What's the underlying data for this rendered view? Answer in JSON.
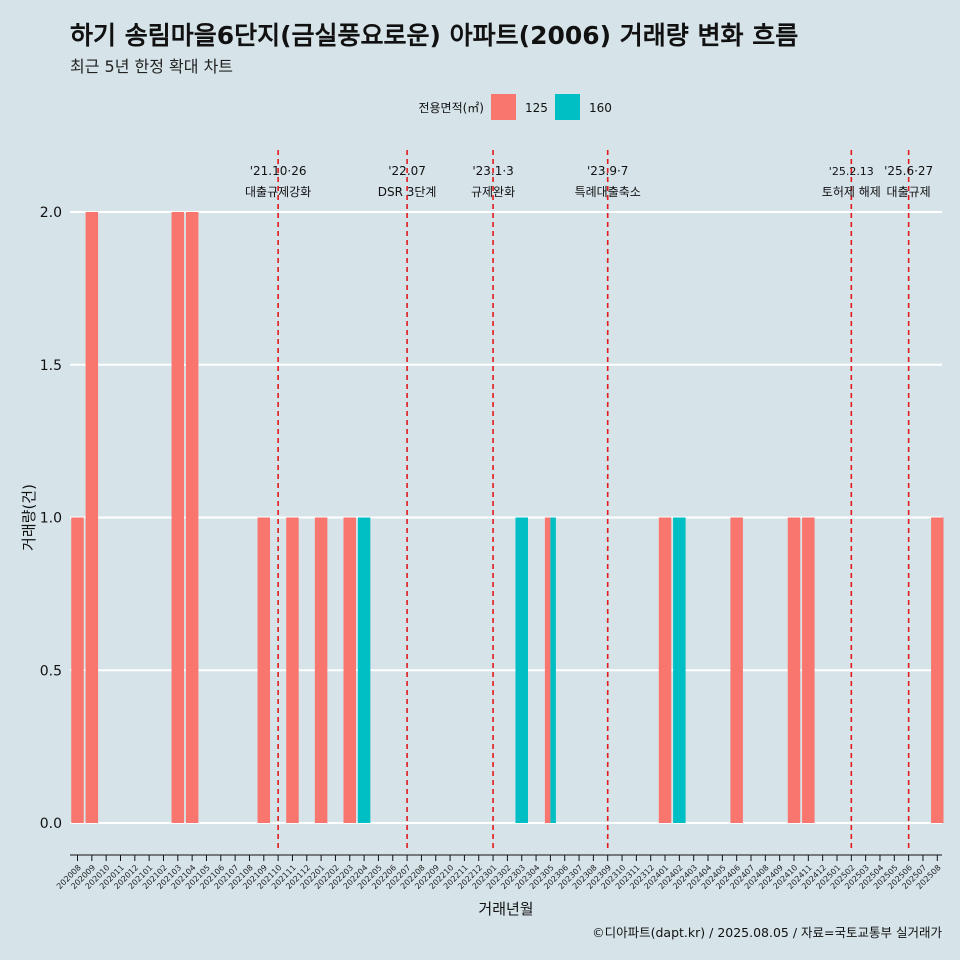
{
  "header": {
    "title": "하기 송림마을6단지(금실풍요로운) 아파트(2006) 거래량 변화 흐름",
    "subtitle": "최근 5년 한정 확대 차트"
  },
  "caption": "©디아파트(dapt.kr) / 2025.08.05 / 자료=국토교통부 실거래가",
  "colors": {
    "background": "#d6e4ea",
    "series_125": "#f8766d",
    "series_160": "#00bfc4",
    "event_line": "#e31a1c",
    "grid": "#ffffff"
  },
  "chart_data": {
    "type": "bar",
    "xlabel": "거래년월",
    "ylabel": "거래량(건)",
    "ylim": [
      0,
      2
    ],
    "y_ticks": [
      "0.0",
      "0.5",
      "1.0",
      "1.5",
      "2.0"
    ],
    "legend": {
      "title": "전용면적(㎡)",
      "position": "top"
    },
    "grid": true,
    "categories": [
      "202008",
      "202009",
      "202010",
      "202011",
      "202012",
      "202101",
      "202102",
      "202103",
      "202104",
      "202105",
      "202106",
      "202107",
      "202108",
      "202109",
      "202110",
      "202111",
      "202112",
      "202201",
      "202202",
      "202203",
      "202204",
      "202205",
      "202206",
      "202207",
      "202208",
      "202209",
      "202210",
      "202211",
      "202212",
      "202301",
      "202302",
      "202303",
      "202304",
      "202305",
      "202306",
      "202307",
      "202308",
      "202309",
      "202310",
      "202311",
      "202312",
      "202401",
      "202402",
      "202403",
      "202404",
      "202405",
      "202406",
      "202407",
      "202408",
      "202409",
      "202410",
      "202411",
      "202412",
      "202501",
      "202502",
      "202503",
      "202504",
      "202505",
      "202506",
      "202507",
      "202508"
    ],
    "series": [
      {
        "name": "125",
        "values": [
          1,
          2,
          0,
          0,
          0,
          0,
          0,
          2,
          2,
          0,
          0,
          0,
          0,
          1,
          0,
          1,
          0,
          1,
          0,
          1,
          0,
          0,
          0,
          0,
          0,
          0,
          0,
          0,
          0,
          0,
          0,
          0,
          0,
          1,
          0,
          0,
          0,
          0,
          0,
          0,
          0,
          1,
          0,
          0,
          0,
          0,
          1,
          0,
          0,
          0,
          1,
          1,
          0,
          0,
          0,
          0,
          0,
          0,
          0,
          0,
          1
        ]
      },
      {
        "name": "160",
        "values": [
          0,
          0,
          0,
          0,
          0,
          0,
          0,
          0,
          0,
          0,
          0,
          0,
          0,
          0,
          0,
          0,
          0,
          0,
          0,
          0,
          1,
          0,
          0,
          0,
          0,
          0,
          0,
          0,
          0,
          0,
          0,
          1,
          0,
          1,
          0,
          0,
          0,
          0,
          0,
          0,
          0,
          0,
          1,
          0,
          0,
          0,
          0,
          0,
          0,
          0,
          0,
          0,
          0,
          0,
          0,
          0,
          0,
          0,
          0,
          0,
          0
        ]
      }
    ],
    "events": [
      {
        "category": "202110",
        "date": "'21.10·26",
        "label": "대출규제강화"
      },
      {
        "category": "202207",
        "date": "'22.07",
        "label": "DSR 3단계"
      },
      {
        "category": "202301",
        "date": "'23.1·3",
        "label": "규제완화"
      },
      {
        "category": "202309",
        "date": "'23.9·7",
        "label": "특례대출축소"
      },
      {
        "category": "202502",
        "date": "'25.2.13",
        "label": "토허제 해제"
      },
      {
        "category": "202506",
        "date": "'25.6·27",
        "label": "대출규제"
      }
    ]
  }
}
